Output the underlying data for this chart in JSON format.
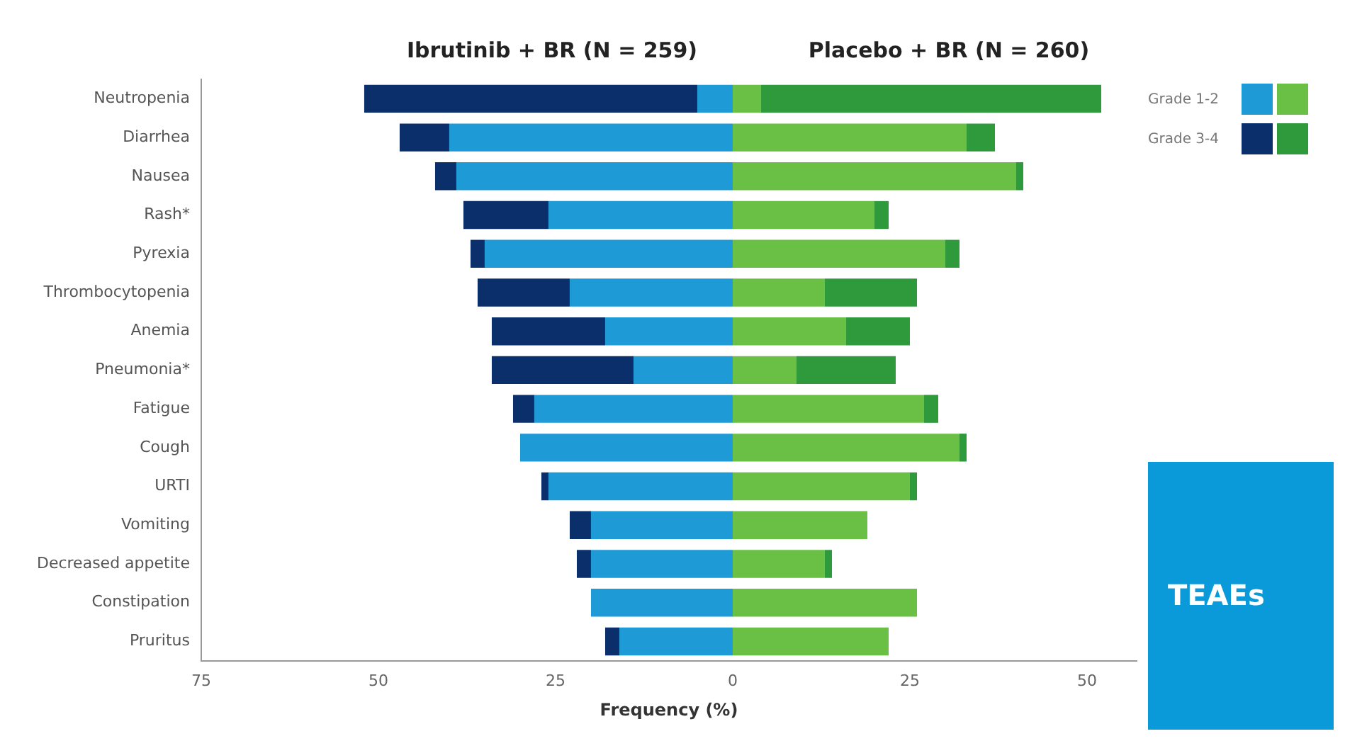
{
  "chart_data": {
    "type": "bar",
    "orientation": "horizontal",
    "stacked": true,
    "xlabel": "Frequency (%)",
    "annotations": [
      "Ibrutinib + BR (N = 259)",
      "Placebo + BR (N = 260)",
      "TEAEs"
    ],
    "categories": [
      "Neutropenia",
      "Diarrhea",
      "Nausea",
      "Rash*",
      "Pyrexia",
      "Thrombocytopenia",
      "Anemia",
      "Pneumonia*",
      "Fatigue",
      "Cough",
      "URTI",
      "Vomiting",
      "Decreased appetite",
      "Constipation",
      "Pruritus"
    ],
    "series": [
      {
        "name": "Grade 1-2",
        "color": "#1e9ad6",
        "values": [
          -5,
          -40,
          -39,
          -26,
          -35,
          -23,
          -18,
          -14,
          -28,
          -30,
          -26,
          -20,
          -20,
          -20,
          -16
        ]
      },
      {
        "name": "Grade 3-4",
        "color": "#0b2f6b",
        "values": [
          -47,
          -7,
          -3,
          -12,
          -2,
          -13,
          -16,
          -20,
          -3,
          0,
          -1,
          -3,
          -2,
          0,
          -2
        ]
      },
      {
        "color": "#6abf45",
        "values": [
          4,
          33,
          40,
          20,
          30,
          13,
          16,
          9,
          27,
          32,
          25,
          19,
          13,
          26,
          22
        ]
      },
      {
        "color": "#2e9a3c",
        "values": [
          48,
          4,
          1,
          2,
          2,
          13,
          9,
          14,
          2,
          1,
          1,
          0,
          1,
          0,
          0
        ]
      }
    ],
    "xlim": [
      -75,
      57
    ],
    "xticks": [
      {
        "value": -75,
        "label": "75"
      },
      {
        "value": -50,
        "label": "50"
      },
      {
        "value": -25,
        "label": "25"
      },
      0,
      25,
      50
    ],
    "grid": false,
    "legend": "right"
  }
}
